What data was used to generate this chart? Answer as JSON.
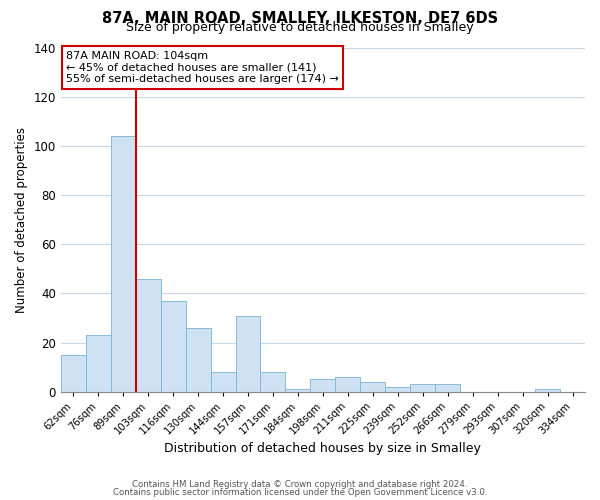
{
  "title": "87A, MAIN ROAD, SMALLEY, ILKESTON, DE7 6DS",
  "subtitle": "Size of property relative to detached houses in Smalley",
  "xlabel": "Distribution of detached houses by size in Smalley",
  "ylabel": "Number of detached properties",
  "bin_labels": [
    "62sqm",
    "76sqm",
    "89sqm",
    "103sqm",
    "116sqm",
    "130sqm",
    "144sqm",
    "157sqm",
    "171sqm",
    "184sqm",
    "198sqm",
    "211sqm",
    "225sqm",
    "239sqm",
    "252sqm",
    "266sqm",
    "279sqm",
    "293sqm",
    "307sqm",
    "320sqm",
    "334sqm"
  ],
  "bar_heights": [
    15,
    23,
    104,
    46,
    37,
    26,
    8,
    31,
    8,
    1,
    5,
    6,
    4,
    2,
    3,
    3,
    0,
    0,
    0,
    1,
    0
  ],
  "bar_color": "#cfe2f3",
  "bar_edge_color": "#7ab4d4",
  "vline_color": "#cc0000",
  "annotation_title": "87A MAIN ROAD: 104sqm",
  "annotation_line1": "← 45% of detached houses are smaller (141)",
  "annotation_line2": "55% of semi-detached houses are larger (174) →",
  "annotation_box_color": "#ffffff",
  "annotation_box_edge": "#cc0000",
  "ylim": [
    0,
    140
  ],
  "yticks": [
    0,
    20,
    40,
    60,
    80,
    100,
    120,
    140
  ],
  "footer1": "Contains HM Land Registry data © Crown copyright and database right 2024.",
  "footer2": "Contains public sector information licensed under the Open Government Licence v3.0.",
  "bg_color": "#ffffff",
  "grid_color": "#c8d8e8"
}
